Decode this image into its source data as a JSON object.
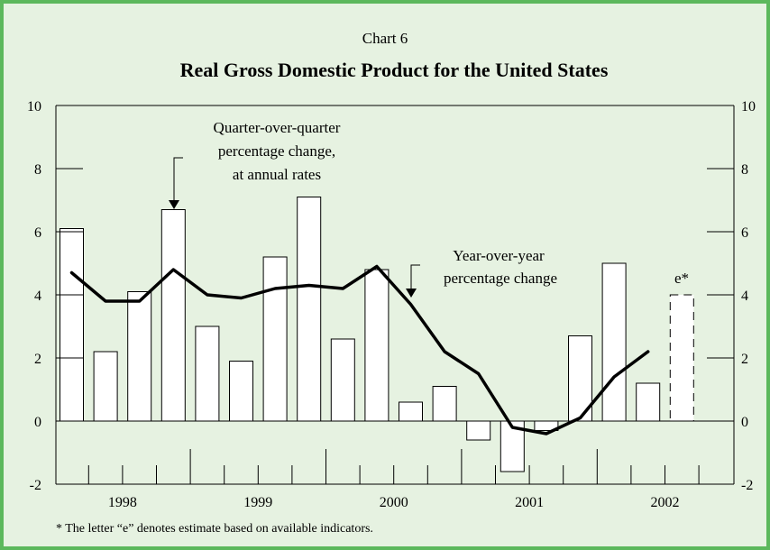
{
  "chart_data": {
    "type": "bar",
    "chart_number": "Chart 6",
    "title": "Real Gross Domestic Product for the United States",
    "ylim": [
      -2,
      10
    ],
    "yticks": [
      "-2",
      "0",
      "2",
      "4",
      "6",
      "8",
      "10"
    ],
    "year_labels": [
      "1998",
      "1999",
      "2000",
      "2001",
      "2002"
    ],
    "quarters": [
      "1998Q1",
      "1998Q2",
      "1998Q3",
      "1998Q4",
      "1999Q1",
      "1999Q2",
      "1999Q3",
      "1999Q4",
      "2000Q1",
      "2000Q2",
      "2000Q3",
      "2000Q4",
      "2001Q1",
      "2001Q2",
      "2001Q3",
      "2001Q4",
      "2002Q1",
      "2002Q2",
      "2002Q3"
    ],
    "series": [
      {
        "type": "bar",
        "values": [
          6.1,
          2.2,
          4.1,
          6.7,
          3.0,
          1.9,
          5.2,
          7.1,
          2.6,
          4.8,
          0.6,
          1.1,
          -0.6,
          -1.6,
          -0.3,
          2.7,
          5.0,
          1.2,
          4.0
        ],
        "estimate_index": 18
      },
      {
        "type": "line",
        "values": [
          4.7,
          3.8,
          3.8,
          4.8,
          4.0,
          3.9,
          4.2,
          4.3,
          4.2,
          4.9,
          3.7,
          2.2,
          1.5,
          -0.2,
          -0.4,
          0.1,
          1.4,
          2.2
        ]
      }
    ],
    "annotations": {
      "bar_label_lines": [
        "Quarter-over-quarter",
        "percentage change,",
        "at annual rates"
      ],
      "line_label_lines": [
        "Year-over-year",
        "percentage change"
      ],
      "estimate_marker": "e*"
    },
    "footnote": "* The letter “e” denotes estimate based on available indicators.",
    "colors": {
      "border": "#5cb85c",
      "background": "#e6f2e1",
      "bar_fill": "#ffffff",
      "line": "#000000"
    }
  }
}
